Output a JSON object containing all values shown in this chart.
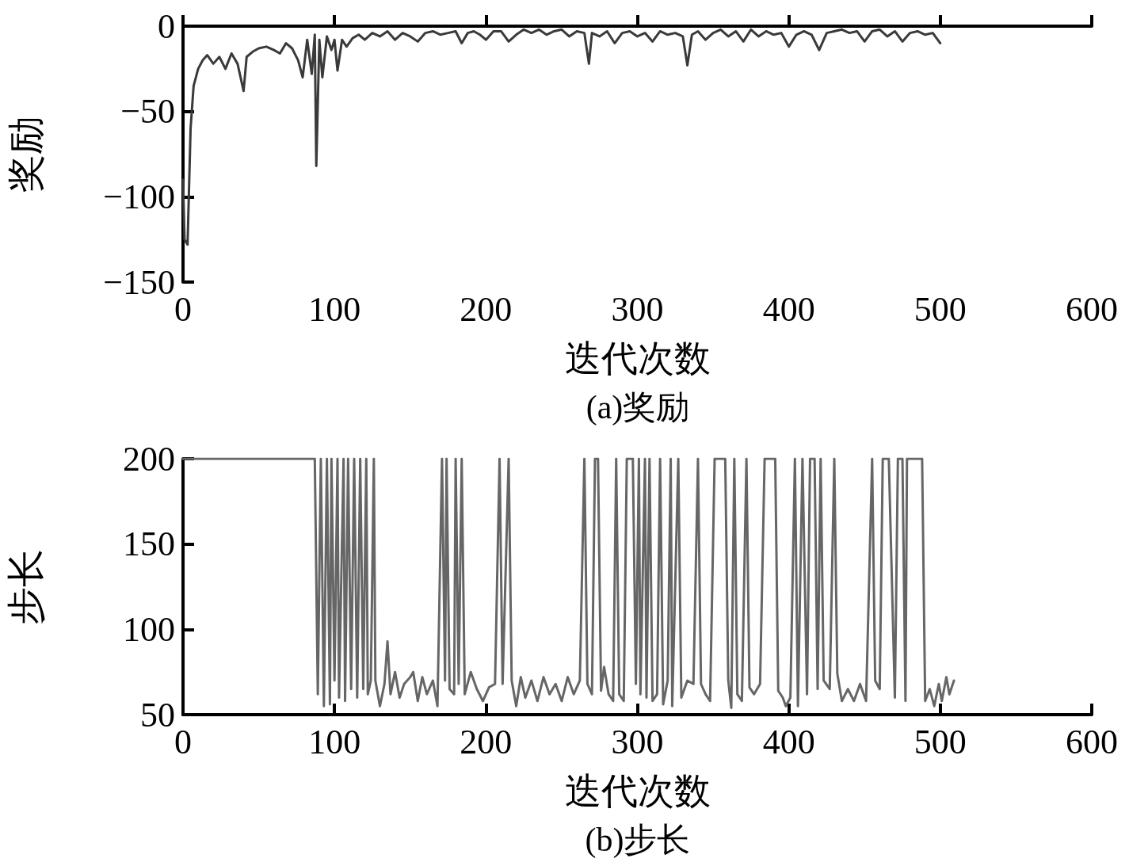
{
  "chart_data": [
    {
      "type": "line",
      "title": "(a)奖励",
      "xlabel": "迭代次数",
      "ylabel": "奖励",
      "color": "#3a3a3a",
      "marker": "none",
      "line_style": "solid",
      "x": [
        0,
        1,
        3,
        5,
        7,
        10,
        13,
        16,
        20,
        24,
        28,
        32,
        36,
        40,
        42,
        46,
        50,
        55,
        60,
        64,
        68,
        72,
        76,
        79,
        82,
        85,
        87,
        88,
        90,
        92,
        95,
        98,
        100,
        102,
        105,
        108,
        112,
        116,
        120,
        125,
        130,
        135,
        140,
        145,
        150,
        155,
        160,
        165,
        170,
        175,
        180,
        184,
        188,
        192,
        196,
        200,
        205,
        210,
        215,
        220,
        225,
        230,
        235,
        240,
        245,
        250,
        255,
        260,
        265,
        268,
        270,
        275,
        280,
        285,
        290,
        295,
        300,
        305,
        310,
        315,
        320,
        325,
        330,
        333,
        336,
        340,
        345,
        350,
        355,
        360,
        365,
        370,
        375,
        380,
        385,
        390,
        395,
        400,
        405,
        410,
        415,
        420,
        425,
        430,
        435,
        440,
        445,
        450,
        455,
        460,
        465,
        470,
        475,
        480,
        485,
        490,
        495,
        500
      ],
      "values": [
        -90,
        -125,
        -128,
        -60,
        -35,
        -25,
        -20,
        -17,
        -22,
        -18,
        -25,
        -16,
        -22,
        -38,
        -18,
        -15,
        -13,
        -12,
        -14,
        -16,
        -10,
        -13,
        -20,
        -30,
        -8,
        -28,
        -5,
        -82,
        -8,
        -30,
        -6,
        -14,
        -8,
        -26,
        -8,
        -12,
        -7,
        -5,
        -8,
        -4,
        -6,
        -3,
        -8,
        -4,
        -6,
        -9,
        -4,
        -3,
        -5,
        -4,
        -3,
        -10,
        -4,
        -3,
        -5,
        -8,
        -3,
        -3,
        -9,
        -5,
        -2,
        -4,
        -2,
        -5,
        -3,
        -2,
        -6,
        -3,
        -4,
        -22,
        -4,
        -6,
        -3,
        -10,
        -4,
        -3,
        -6,
        -4,
        -9,
        -3,
        -5,
        -4,
        -6,
        -23,
        -5,
        -3,
        -8,
        -4,
        -2,
        -6,
        -3,
        -9,
        -2,
        -6,
        -3,
        -5,
        -4,
        -12,
        -5,
        -3,
        -5,
        -14,
        -4,
        -3,
        -2,
        -4,
        -3,
        -9,
        -3,
        -2,
        -6,
        -3,
        -9,
        -4,
        -3,
        -5,
        -4,
        -10
      ],
      "xlim": [
        0,
        600
      ],
      "xticks": [
        0,
        100,
        200,
        300,
        400,
        500,
        600
      ],
      "ylim": [
        -150,
        0
      ],
      "yticks": [
        {
          "value": -150,
          "label": "−150"
        },
        {
          "value": -100,
          "label": "−100"
        },
        {
          "value": -50,
          "label": "−50"
        },
        0
      ]
    },
    {
      "type": "line",
      "title": "(b)步长",
      "xlabel": "迭代次数",
      "ylabel": "步长",
      "color": "#666666",
      "marker": "none",
      "line_style": "solid",
      "x": [
        0,
        87,
        89,
        91,
        93,
        95,
        97,
        98,
        100,
        102,
        103,
        106,
        107,
        109,
        111,
        113,
        115,
        117,
        119,
        121,
        122,
        124,
        126,
        127,
        130,
        133,
        135,
        137,
        140,
        143,
        146,
        150,
        152,
        155,
        158,
        161,
        165,
        168,
        171,
        173,
        174,
        176,
        179,
        180,
        182,
        184,
        186,
        190,
        194,
        198,
        202,
        206,
        209,
        211,
        215,
        217,
        220,
        223,
        226,
        230,
        234,
        238,
        242,
        246,
        250,
        254,
        258,
        262,
        265,
        267,
        270,
        272,
        274,
        276,
        278,
        281,
        284,
        286,
        288,
        291,
        293,
        297,
        299,
        301,
        302,
        305,
        306,
        308,
        310,
        313,
        315,
        317,
        320,
        322,
        323,
        327,
        329,
        333,
        337,
        340,
        342,
        345,
        348,
        351,
        355,
        358,
        360,
        362,
        364,
        366,
        369,
        372,
        374,
        377,
        381,
        384,
        388,
        391,
        393,
        396,
        398,
        401,
        404,
        406,
        409,
        412,
        414,
        417,
        419,
        421,
        423,
        427,
        430,
        432,
        435,
        439,
        443,
        447,
        451,
        455,
        457,
        460,
        462,
        466,
        470,
        472,
        475,
        477,
        478,
        483,
        488,
        490,
        493,
        496,
        499,
        501,
        504,
        506,
        509
      ],
      "values": [
        200,
        200,
        62,
        200,
        55,
        200,
        56,
        200,
        70,
        200,
        60,
        200,
        58,
        200,
        65,
        200,
        60,
        200,
        65,
        200,
        62,
        70,
        200,
        70,
        55,
        68,
        93,
        62,
        75,
        60,
        68,
        72,
        75,
        58,
        72,
        62,
        70,
        55,
        200,
        70,
        200,
        65,
        62,
        200,
        68,
        200,
        62,
        75,
        65,
        58,
        66,
        68,
        200,
        68,
        200,
        70,
        55,
        72,
        60,
        70,
        58,
        72,
        62,
        68,
        58,
        72,
        62,
        70,
        200,
        68,
        62,
        200,
        200,
        64,
        78,
        62,
        58,
        200,
        62,
        58,
        200,
        200,
        68,
        200,
        62,
        200,
        60,
        200,
        58,
        62,
        200,
        56,
        70,
        200,
        55,
        200,
        60,
        70,
        68,
        200,
        68,
        62,
        58,
        200,
        200,
        200,
        70,
        54,
        200,
        62,
        58,
        200,
        66,
        62,
        68,
        200,
        200,
        200,
        64,
        60,
        55,
        60,
        200,
        55,
        200,
        62,
        200,
        200,
        65,
        200,
        70,
        65,
        200,
        74,
        58,
        65,
        58,
        68,
        58,
        200,
        70,
        65,
        200,
        200,
        60,
        200,
        200,
        58,
        200,
        200,
        200,
        58,
        65,
        55,
        68,
        58,
        72,
        62,
        70
      ],
      "xlim": [
        0,
        600
      ],
      "xticks": [
        0,
        100,
        200,
        300,
        400,
        500,
        600
      ],
      "ylim": [
        50,
        200
      ],
      "yticks": [
        50,
        100,
        150,
        200
      ]
    }
  ]
}
